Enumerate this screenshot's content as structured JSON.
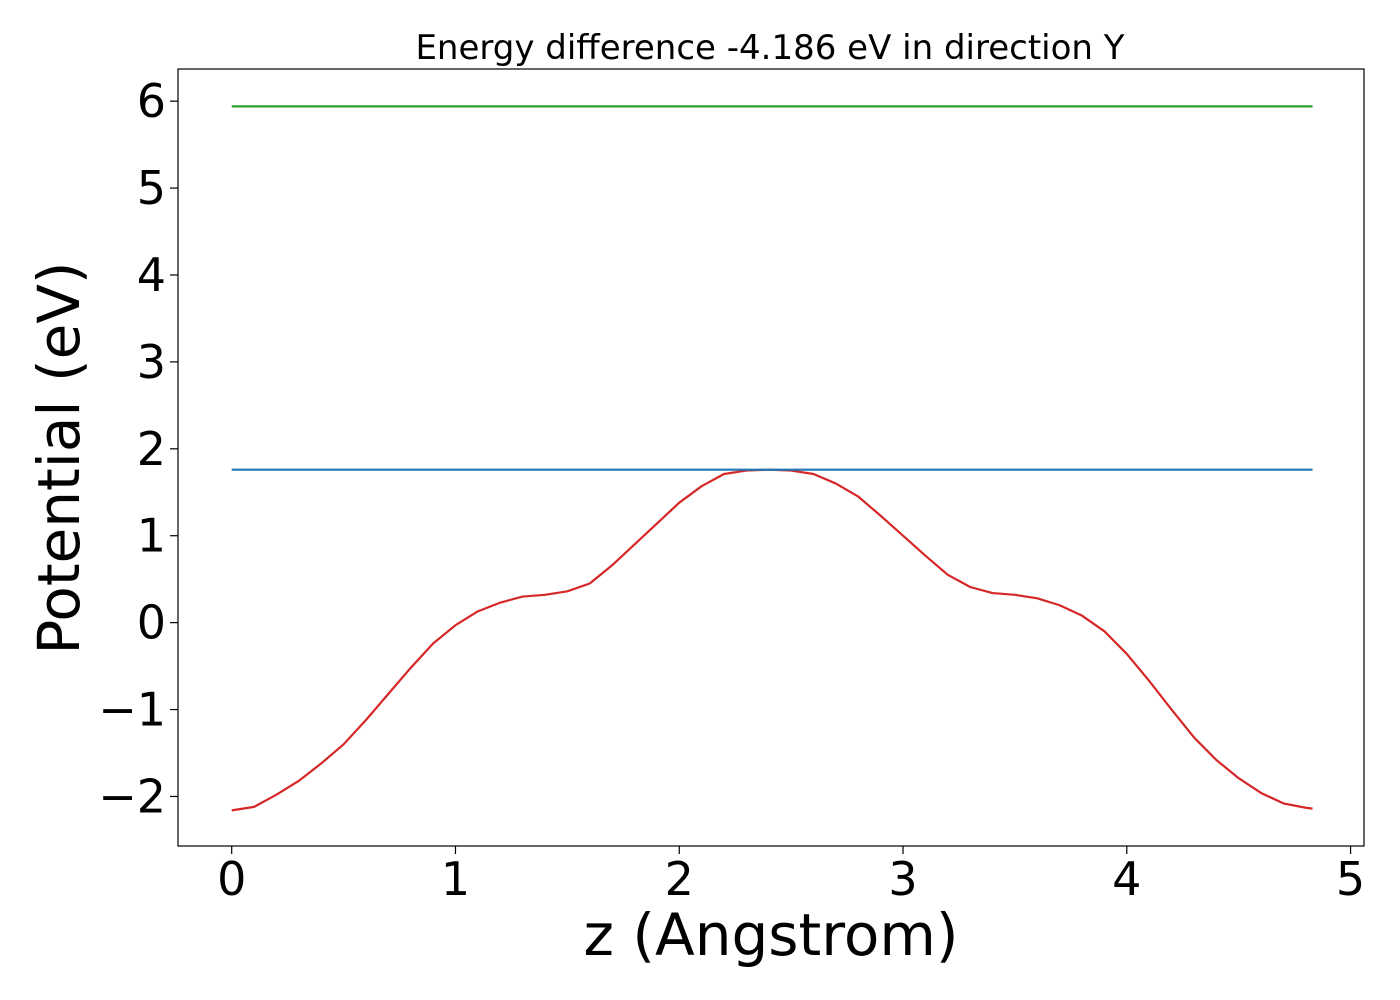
{
  "chart_data": {
    "type": "line",
    "title": "Energy difference -4.186 eV in direction Y",
    "xlabel": "z (Angstrom)",
    "ylabel": "Potential (eV)",
    "xlim": [
      -0.24,
      5.06
    ],
    "ylim": [
      -2.57,
      6.37
    ],
    "x_ticks": [
      0,
      1,
      2,
      3,
      4,
      5
    ],
    "x_tick_labels": [
      "0",
      "1",
      "2",
      "3",
      "4",
      "5"
    ],
    "y_ticks": [
      -2,
      -1,
      0,
      1,
      2,
      3,
      4,
      5,
      6
    ],
    "y_tick_labels": [
      "−2",
      "−1",
      "0",
      "1",
      "2",
      "3",
      "4",
      "5",
      "6"
    ],
    "grid": false,
    "legend": "none",
    "series": [
      {
        "color": "#d62728",
        "x": [
          0.0,
          0.1,
          0.2,
          0.3,
          0.4,
          0.5,
          0.6,
          0.7,
          0.8,
          0.9,
          1.0,
          1.1,
          1.2,
          1.3,
          1.4,
          1.5,
          1.6,
          1.7,
          1.8,
          1.9,
          2.0,
          2.1,
          2.2,
          2.3,
          2.4,
          2.5,
          2.6,
          2.7,
          2.8,
          2.9,
          3.0,
          3.1,
          3.2,
          3.3,
          3.4,
          3.5,
          3.6,
          3.7,
          3.8,
          3.9,
          4.0,
          4.1,
          4.2,
          4.3,
          4.4,
          4.5,
          4.6,
          4.7,
          4.8,
          4.83
        ],
        "y": [
          -2.16,
          -2.12,
          -1.98,
          -1.82,
          -1.62,
          -1.4,
          -1.12,
          -0.82,
          -0.52,
          -0.24,
          -0.03,
          0.13,
          0.23,
          0.3,
          0.32,
          0.36,
          0.45,
          0.66,
          0.9,
          1.14,
          1.38,
          1.57,
          1.71,
          1.75,
          1.76,
          1.75,
          1.71,
          1.6,
          1.45,
          1.23,
          1.0,
          0.77,
          0.55,
          0.41,
          0.34,
          0.32,
          0.28,
          0.2,
          0.08,
          -0.1,
          -0.36,
          -0.67,
          -1.0,
          -1.32,
          -1.58,
          -1.79,
          -1.96,
          -2.08,
          -2.13,
          -2.14
        ]
      },
      {
        "color": "#1f77b4",
        "x": [
          0.0,
          4.83
        ],
        "y": [
          1.76,
          1.76
        ]
      },
      {
        "color": "#2ca02c",
        "x": [
          0.0,
          4.83
        ],
        "y": [
          5.94,
          5.94
        ]
      }
    ]
  }
}
